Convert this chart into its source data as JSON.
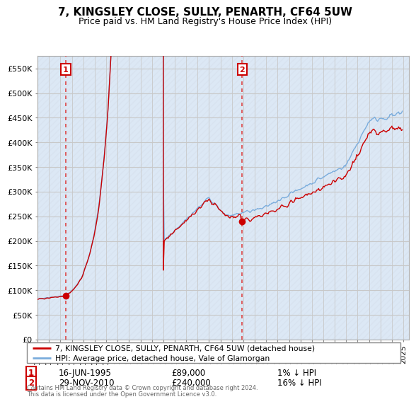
{
  "title": "7, KINGSLEY CLOSE, SULLY, PENARTH, CF64 5UW",
  "subtitle": "Price paid vs. HM Land Registry's House Price Index (HPI)",
  "ylabel_ticks": [
    "£0",
    "£50K",
    "£100K",
    "£150K",
    "£200K",
    "£250K",
    "£300K",
    "£350K",
    "£400K",
    "£450K",
    "£500K",
    "£550K"
  ],
  "ytick_vals": [
    0,
    50000,
    100000,
    150000,
    200000,
    250000,
    300000,
    350000,
    400000,
    450000,
    500000,
    550000
  ],
  "ylim": [
    0,
    575000
  ],
  "xlim_left": 1993.0,
  "xlim_right": 2025.5,
  "legend_line1": "7, KINGSLEY CLOSE, SULLY, PENARTH, CF64 5UW (detached house)",
  "legend_line2": "HPI: Average price, detached house, Vale of Glamorgan",
  "marker1_year": 1995.46,
  "marker1_price": 89000,
  "marker1_date": "16-JUN-1995",
  "marker1_label": "1% ↓ HPI",
  "marker2_year": 2010.91,
  "marker2_price": 240000,
  "marker2_date": "29-NOV-2010",
  "marker2_label": "16% ↓ HPI",
  "footer": "Contains HM Land Registry data © Crown copyright and database right 2024.\nThis data is licensed under the Open Government Licence v3.0.",
  "sale_color": "#cc0000",
  "hpi_color": "#7aacdc",
  "annotation_box_color": "#cc0000",
  "vline_color": "#dd4444",
  "grid_color": "#c8c8c8",
  "bg_color": "#dce8f5",
  "hatch_color": "#c0c8d0"
}
